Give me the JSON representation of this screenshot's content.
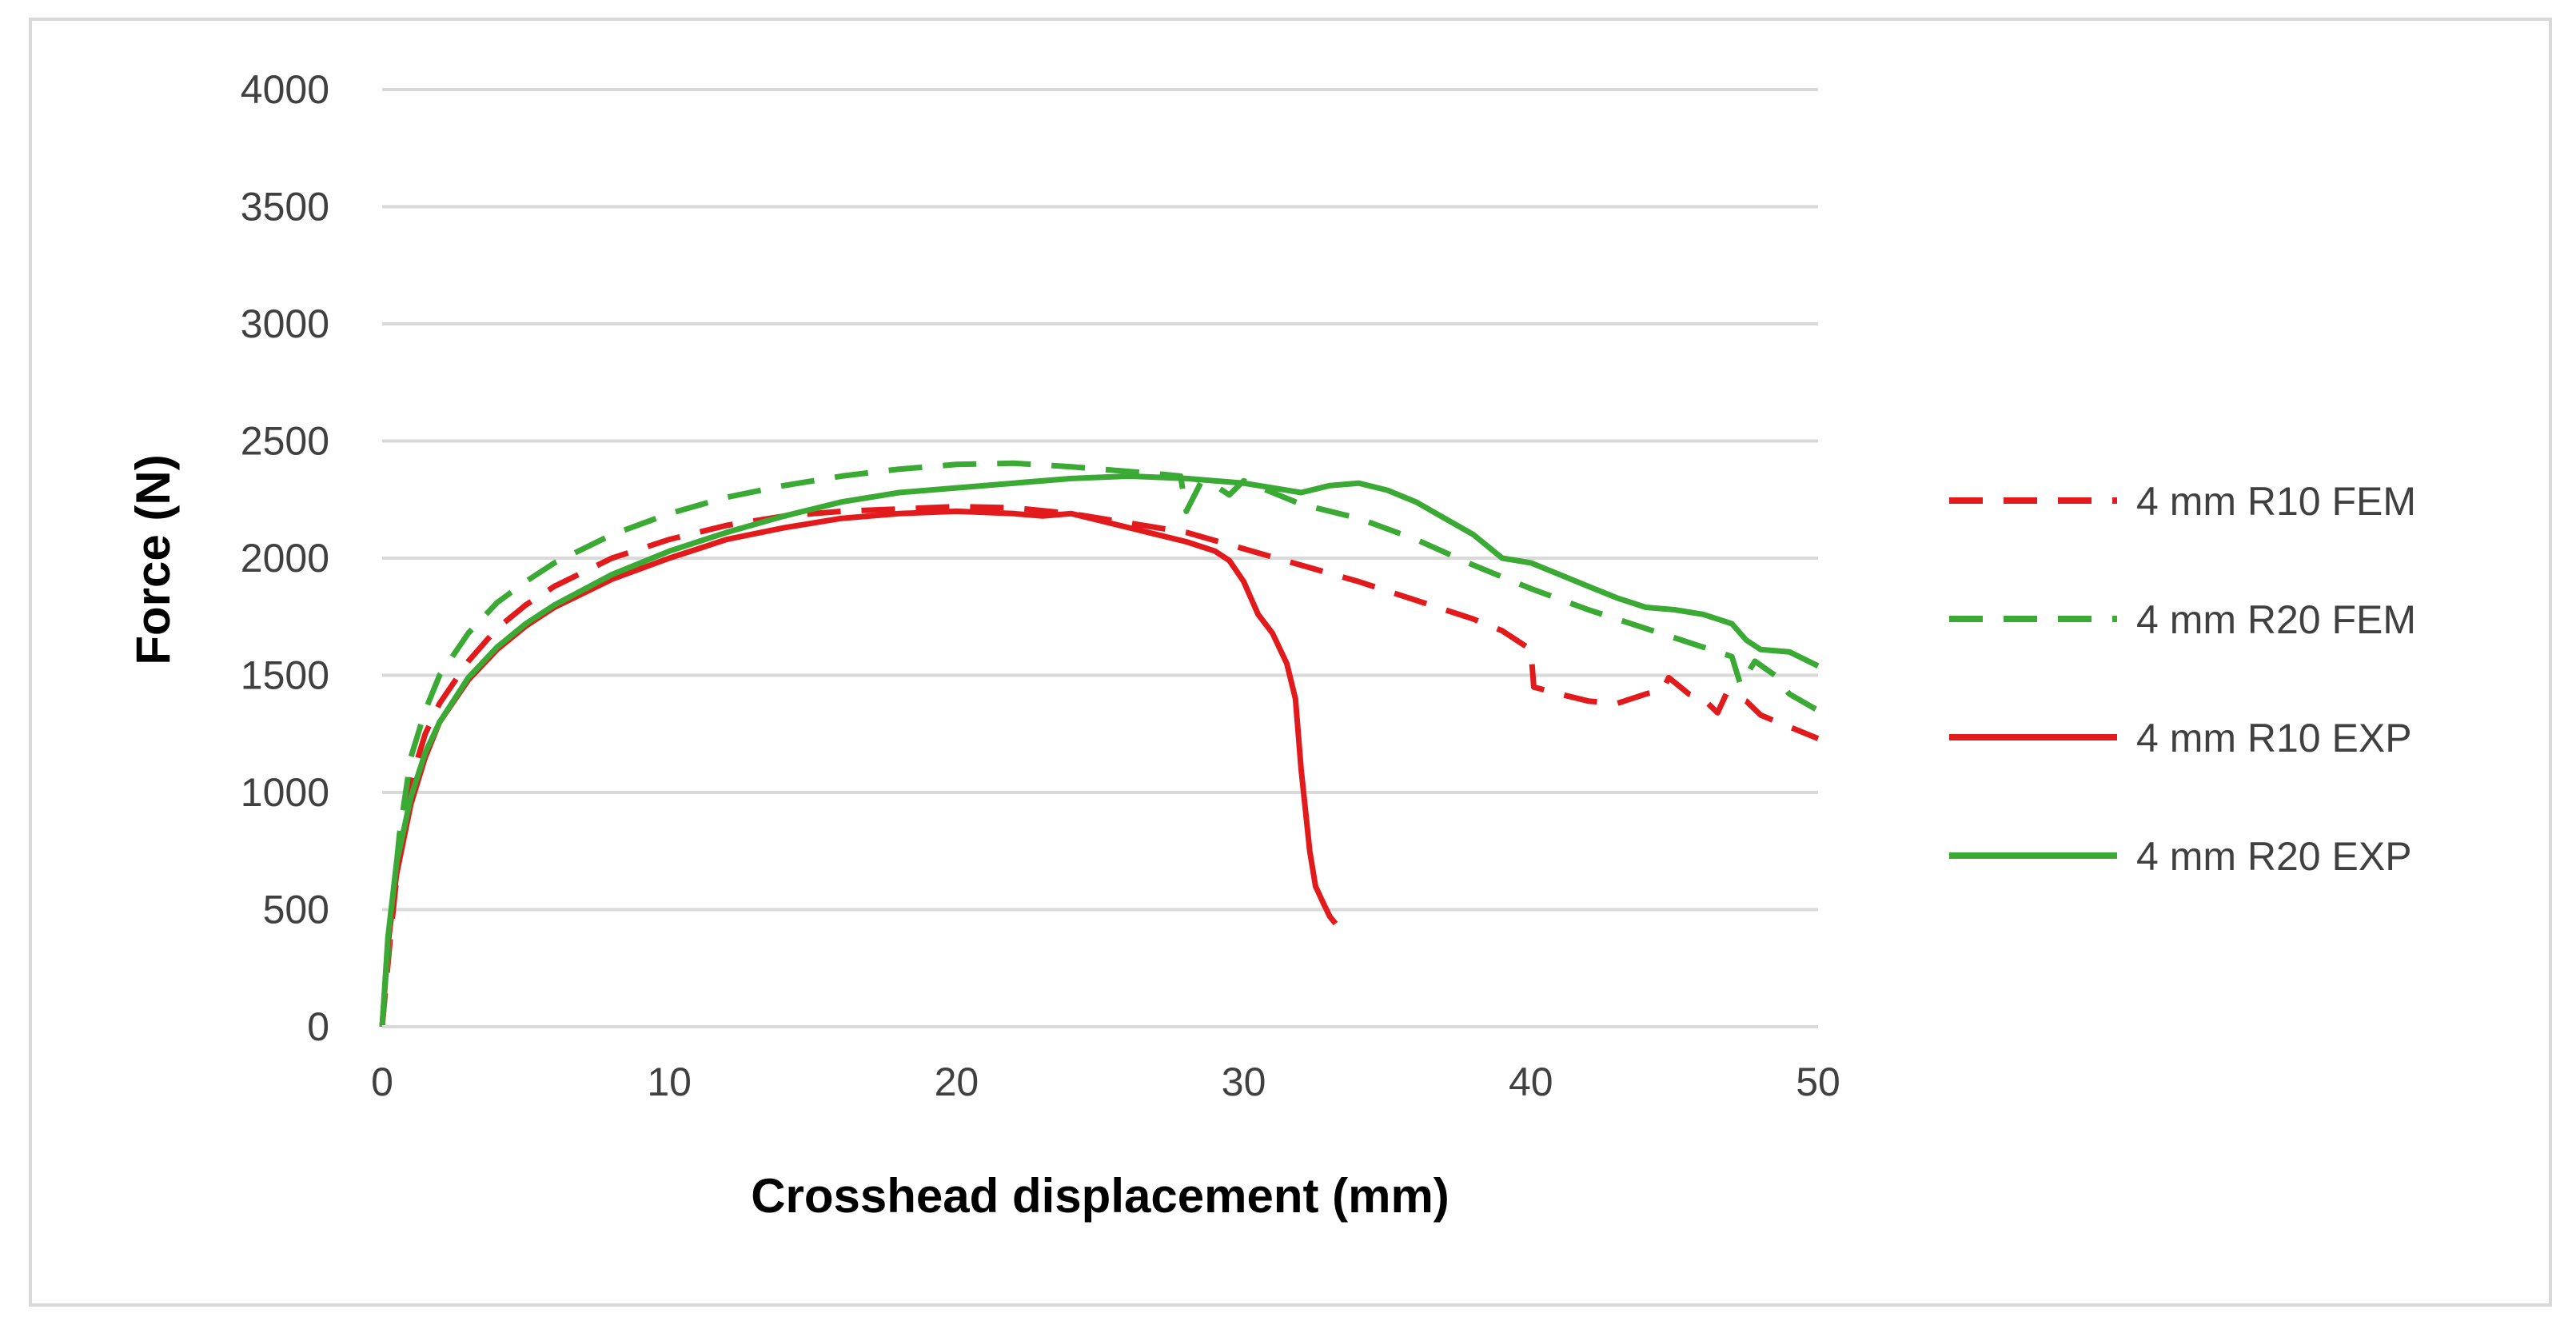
{
  "chart_data": {
    "type": "line",
    "title": "",
    "xlabel": "Crosshead displacement (mm)",
    "ylabel": "Force (N)",
    "xlim": [
      0,
      50
    ],
    "ylim": [
      0,
      4000
    ],
    "xticks": [
      0,
      10,
      20,
      30,
      40,
      50
    ],
    "yticks": [
      0,
      500,
      1000,
      1500,
      2000,
      2500,
      3000,
      3500,
      4000
    ],
    "grid": "horizontal",
    "legend_position": "right",
    "series": [
      {
        "name": "4 mm R10 FEM",
        "color": "#e31a1c",
        "style": "dashed",
        "x": [
          0,
          0.3,
          0.6,
          1,
          1.5,
          2,
          3,
          4,
          5,
          6,
          8,
          10,
          12,
          14,
          16,
          18,
          20,
          22,
          24,
          26,
          28,
          30,
          32,
          34,
          36,
          38,
          39,
          40,
          40.1,
          41,
          42,
          43,
          44,
          44.6,
          44.8,
          45.5,
          46,
          46.5,
          46.8,
          47.5,
          48,
          49,
          50
        ],
        "y": [
          0,
          400,
          750,
          1050,
          1250,
          1380,
          1560,
          1700,
          1800,
          1880,
          2000,
          2080,
          2140,
          2180,
          2200,
          2210,
          2220,
          2215,
          2190,
          2150,
          2110,
          2040,
          1970,
          1900,
          1820,
          1740,
          1690,
          1610,
          1450,
          1420,
          1390,
          1380,
          1420,
          1440,
          1490,
          1420,
          1400,
          1340,
          1420,
          1390,
          1330,
          1280,
          1230
        ]
      },
      {
        "name": "4 mm R20 FEM",
        "color": "#3aaa35",
        "style": "dashed",
        "x": [
          0,
          0.3,
          0.6,
          1,
          1.5,
          2,
          3,
          4,
          5,
          6,
          8,
          10,
          12,
          14,
          16,
          18,
          20,
          22,
          24,
          26,
          27,
          27.8,
          28,
          28.5,
          29,
          29.5,
          30,
          32,
          34,
          36,
          38,
          40,
          42,
          44,
          46,
          47,
          47.3,
          47.8,
          48.5,
          49,
          50
        ],
        "y": [
          0,
          450,
          820,
          1150,
          1350,
          1500,
          1680,
          1810,
          1900,
          1980,
          2100,
          2190,
          2260,
          2310,
          2350,
          2380,
          2400,
          2405,
          2390,
          2370,
          2360,
          2350,
          2200,
          2320,
          2310,
          2270,
          2330,
          2230,
          2170,
          2080,
          1970,
          1870,
          1780,
          1700,
          1620,
          1580,
          1460,
          1560,
          1500,
          1420,
          1350
        ]
      },
      {
        "name": "4 mm R10 EXP",
        "color": "#e31a1c",
        "style": "solid",
        "x": [
          0,
          0.2,
          0.5,
          1,
          1.5,
          2,
          3,
          4,
          5,
          6,
          8,
          10,
          12,
          14,
          16,
          18,
          20,
          22,
          23,
          24,
          25,
          26,
          27,
          28,
          29,
          29.5,
          30,
          30.5,
          31,
          31.5,
          31.8,
          32,
          32.3,
          32.5,
          32.8,
          33,
          33.2
        ],
        "y": [
          0,
          350,
          650,
          950,
          1150,
          1300,
          1480,
          1610,
          1710,
          1790,
          1910,
          2000,
          2080,
          2130,
          2170,
          2190,
          2200,
          2190,
          2180,
          2190,
          2160,
          2130,
          2100,
          2070,
          2030,
          1990,
          1900,
          1760,
          1680,
          1550,
          1400,
          1100,
          750,
          600,
          520,
          470,
          440
        ]
      },
      {
        "name": "4 mm R20 EXP",
        "color": "#3aaa35",
        "style": "solid",
        "x": [
          0,
          0.2,
          0.5,
          1,
          1.5,
          2,
          3,
          4,
          5,
          6,
          8,
          10,
          12,
          14,
          16,
          18,
          20,
          22,
          24,
          26,
          28,
          30,
          31,
          32,
          33,
          34,
          35,
          36,
          37,
          38,
          39,
          40,
          41,
          42,
          43,
          44,
          45,
          46,
          47,
          47.5,
          48,
          49,
          50
        ],
        "y": [
          0,
          380,
          700,
          980,
          1170,
          1300,
          1490,
          1620,
          1720,
          1800,
          1930,
          2030,
          2110,
          2180,
          2240,
          2280,
          2300,
          2320,
          2340,
          2350,
          2340,
          2320,
          2300,
          2280,
          2310,
          2320,
          2290,
          2240,
          2170,
          2100,
          2000,
          1980,
          1930,
          1880,
          1830,
          1790,
          1780,
          1760,
          1720,
          1650,
          1610,
          1600,
          1540
        ]
      }
    ]
  }
}
